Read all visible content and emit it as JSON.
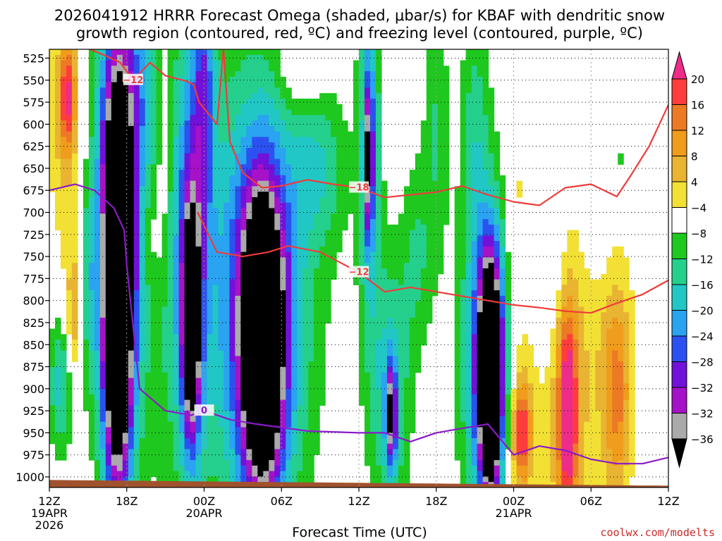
{
  "chart_data": {
    "type": "heatmap",
    "title_lines": [
      "2026041912 HRRR Forecast Omega (shaded, μbar/s) for KBAF with dendritic snow",
      "growth region (contoured, red, ºC) and freezing level (contoured, purple, ºC)"
    ],
    "xlabel": "Forecast Time (UTC)",
    "credit": "coolwx.com/modelts",
    "x_range_hours": [
      0,
      48
    ],
    "x_ticks": [
      {
        "hour": 0,
        "lines": [
          "12Z",
          "19APR",
          "2026"
        ]
      },
      {
        "hour": 6,
        "lines": [
          "18Z"
        ]
      },
      {
        "hour": 12,
        "lines": [
          "00Z",
          "20APR"
        ]
      },
      {
        "hour": 18,
        "lines": [
          "06Z"
        ]
      },
      {
        "hour": 24,
        "lines": [
          "12Z"
        ]
      },
      {
        "hour": 30,
        "lines": [
          "18Z"
        ]
      },
      {
        "hour": 36,
        "lines": [
          "00Z",
          "21APR"
        ]
      },
      {
        "hour": 42,
        "lines": [
          "06Z"
        ]
      },
      {
        "hour": 48,
        "lines": [
          "12Z"
        ]
      }
    ],
    "y_range_hpa": [
      1012,
      515
    ],
    "y_ticks": [
      "525",
      "550",
      "575",
      "600",
      "625",
      "650",
      "675",
      "700",
      "725",
      "750",
      "775",
      "800",
      "825",
      "850",
      "875",
      "900",
      "925",
      "950",
      "975",
      "1000"
    ],
    "colorbar": {
      "levels": [
        {
          "label": "20",
          "color": "#ff3d3d"
        },
        {
          "label": "16",
          "color": "#ec7a25"
        },
        {
          "label": "12",
          "color": "#f09c1c"
        },
        {
          "label": "8",
          "color": "#e8b432"
        },
        {
          "label": "4",
          "color": "#f3e034"
        },
        {
          "label": "−4",
          "color": "#ffffff"
        },
        {
          "label": "−8",
          "color": "#1fc81f"
        },
        {
          "label": "−12",
          "color": "#25cf8c"
        },
        {
          "label": "−16",
          "color": "#21c7c5"
        },
        {
          "label": "−20",
          "color": "#2aa3f1"
        },
        {
          "label": "−24",
          "color": "#2b52f0"
        },
        {
          "label": "−28",
          "color": "#7211d9"
        },
        {
          "label": "−32",
          "color": "#a612c8"
        },
        {
          "label": "−36",
          "color": "#aaaaaa"
        }
      ],
      "top_cap_color": "#ee2c8a",
      "bottom_cap_color": "#000000"
    },
    "omega_blobs": [
      {
        "t": 1.3,
        "p": 590,
        "dt": 1.0,
        "dp": 110,
        "v": 10
      },
      {
        "t": 1.4,
        "p": 570,
        "dt": 0.4,
        "dp": 40,
        "v": 18
      },
      {
        "t": 0.9,
        "p": 895,
        "dt": 0.7,
        "dp": 55,
        "v": -14
      },
      {
        "t": 1.9,
        "p": 820,
        "dt": 0.5,
        "dp": 60,
        "v": 12
      },
      {
        "t": 3.0,
        "p": 780,
        "dt": 0.4,
        "dp": 80,
        "v": -10
      },
      {
        "t": 5.3,
        "p": 790,
        "dt": 1.1,
        "dp": 180,
        "v": -30
      },
      {
        "t": 5.3,
        "p": 790,
        "dt": 0.7,
        "dp": 140,
        "v": -44
      },
      {
        "t": 5.5,
        "p": 630,
        "dt": 1.6,
        "dp": 150,
        "v": -11
      },
      {
        "t": 6.5,
        "p": 560,
        "dt": 1.5,
        "dp": 70,
        "v": -9
      },
      {
        "t": 8.9,
        "p": 590,
        "dt": 0.5,
        "dp": 110,
        "v": 8
      },
      {
        "t": 8.0,
        "p": 720,
        "dt": 0.7,
        "dp": 60,
        "v": 6
      },
      {
        "t": 10.0,
        "p": 730,
        "dt": 2.0,
        "dp": 220,
        "v": -9
      },
      {
        "t": 11.0,
        "p": 790,
        "dt": 0.7,
        "dp": 150,
        "v": -22
      },
      {
        "t": 11.0,
        "p": 830,
        "dt": 0.4,
        "dp": 70,
        "v": -33
      },
      {
        "t": 12.0,
        "p": 550,
        "dt": 0.6,
        "dp": 110,
        "v": -16
      },
      {
        "t": 16.0,
        "p": 770,
        "dt": 3.5,
        "dp": 200,
        "v": -13
      },
      {
        "t": 16.5,
        "p": 840,
        "dt": 1.8,
        "dp": 140,
        "v": -24
      },
      {
        "t": 16.5,
        "p": 850,
        "dt": 1.0,
        "dp": 110,
        "v": -42
      },
      {
        "t": 19.5,
        "p": 540,
        "dt": 1.2,
        "dp": 30,
        "v": 8
      },
      {
        "t": 21.0,
        "p": 650,
        "dt": 1.5,
        "dp": 60,
        "v": -9
      },
      {
        "t": 24.8,
        "p": 620,
        "dt": 0.6,
        "dp": 150,
        "v": -17
      },
      {
        "t": 24.8,
        "p": 640,
        "dt": 0.2,
        "dp": 60,
        "v": -28
      },
      {
        "t": 26.4,
        "p": 900,
        "dt": 1.1,
        "dp": 110,
        "v": -14
      },
      {
        "t": 26.5,
        "p": 930,
        "dt": 0.3,
        "dp": 40,
        "v": -28
      },
      {
        "t": 28.5,
        "p": 750,
        "dt": 0.8,
        "dp": 80,
        "v": -8
      },
      {
        "t": 30.0,
        "p": 600,
        "dt": 0.7,
        "dp": 120,
        "v": -8
      },
      {
        "t": 34.0,
        "p": 870,
        "dt": 1.5,
        "dp": 140,
        "v": -18
      },
      {
        "t": 34.1,
        "p": 880,
        "dt": 0.8,
        "dp": 100,
        "v": -28
      },
      {
        "t": 34.2,
        "p": 890,
        "dt": 0.45,
        "dp": 75,
        "v": -46
      },
      {
        "t": 33.0,
        "p": 600,
        "dt": 0.8,
        "dp": 100,
        "v": -9
      },
      {
        "t": 36.5,
        "p": 930,
        "dt": 1.0,
        "dp": 100,
        "v": 10
      },
      {
        "t": 36.6,
        "p": 950,
        "dt": 0.5,
        "dp": 40,
        "v": 18
      },
      {
        "t": 36.0,
        "p": 720,
        "dt": 0.5,
        "dp": 80,
        "v": 6
      },
      {
        "t": 38.0,
        "p": 650,
        "dt": 1.3,
        "dp": 60,
        "v": 5
      },
      {
        "t": 40.0,
        "p": 900,
        "dt": 1.2,
        "dp": 150,
        "v": 12
      },
      {
        "t": 40.2,
        "p": 930,
        "dt": 0.5,
        "dp": 80,
        "v": 22
      },
      {
        "t": 39.0,
        "p": 740,
        "dt": 1.0,
        "dp": 100,
        "v": -8
      },
      {
        "t": 43.5,
        "p": 880,
        "dt": 1.6,
        "dp": 120,
        "v": 7
      },
      {
        "t": 44.0,
        "p": 910,
        "dt": 0.7,
        "dp": 80,
        "v": 12
      },
      {
        "t": 42.5,
        "p": 690,
        "dt": 0.8,
        "dp": 50,
        "v": -6
      },
      {
        "t": 44.5,
        "p": 640,
        "dt": 0.3,
        "dp": 30,
        "v": -6
      }
    ],
    "contours": [
      {
        "name": "dgz-upper-minus-12",
        "label": "−12",
        "color": "#ef3b3b",
        "t": [
          2.5,
          4.0,
          5.5,
          6.5,
          7.8,
          9.0,
          10.6,
          11.2,
          11.6,
          13.0,
          13.5
        ],
        "p": [
          511,
          520,
          530,
          550,
          530,
          545,
          551,
          555,
          575,
          600,
          515
        ]
      },
      {
        "name": "dgz-minus-18",
        "label": "−18",
        "color": "#ef3b3b",
        "t": [
          13.5,
          14.0,
          15.0,
          16.5,
          18.0,
          20.0,
          22.0,
          24.0,
          26.0,
          28.0,
          30.0,
          32.0,
          34.0,
          36.0,
          38.0,
          40.0,
          42.0,
          44.0,
          45.0,
          46.5,
          48.0
        ],
        "p": [
          515,
          620,
          655,
          672,
          670,
          663,
          668,
          672,
          683,
          680,
          677,
          670,
          680,
          688,
          692,
          672,
          668,
          682,
          660,
          625,
          578
        ]
      },
      {
        "name": "dgz-lower-minus-12",
        "label": "−12",
        "color": "#ef3b3b",
        "t": [
          11.5,
          13.0,
          15.0,
          17.0,
          18.5,
          21.0,
          24.0,
          26.0,
          28.0,
          30.0,
          32.0,
          34.0,
          36.0,
          38.0,
          40.0,
          42.0,
          44.0,
          46.0,
          48.0
        ],
        "p": [
          700,
          745,
          750,
          745,
          738,
          745,
          768,
          790,
          785,
          790,
          795,
          800,
          805,
          808,
          812,
          814,
          803,
          793,
          777
        ]
      },
      {
        "name": "freezing-level-0",
        "label": "0",
        "color": "#8a1ac8",
        "t": [
          0.0,
          2.0,
          3.5,
          5.0,
          5.8,
          6.0,
          7.0,
          9.0,
          11.0,
          12.0,
          14.0,
          16.0,
          18.0,
          20.0,
          24.0,
          26.0,
          28.0,
          30.0,
          32.0,
          34.0,
          36.0,
          38.0,
          40.0,
          42.0,
          44.0,
          46.0,
          48.0
        ],
        "p": [
          675,
          668,
          675,
          695,
          720,
          760,
          900,
          925,
          930,
          925,
          935,
          940,
          944,
          948,
          950,
          950,
          960,
          950,
          945,
          940,
          975,
          965,
          970,
          980,
          985,
          985,
          978
        ]
      }
    ]
  }
}
